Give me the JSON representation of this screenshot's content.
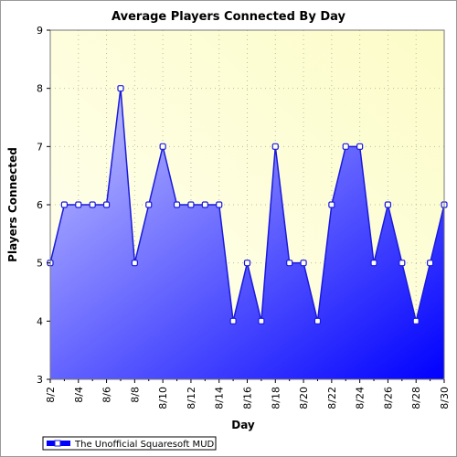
{
  "chart_data": {
    "type": "area",
    "title": "Average Players Connected By Day",
    "xlabel": "Day",
    "ylabel": "Players Connected",
    "ylim": [
      3,
      9
    ],
    "yticks": [
      3,
      4,
      5,
      6,
      7,
      8,
      9
    ],
    "x": [
      "8/2",
      "8/3",
      "8/4",
      "8/5",
      "8/6",
      "8/7",
      "8/8",
      "8/9",
      "8/10",
      "8/11",
      "8/12",
      "8/13",
      "8/14",
      "8/15",
      "8/16",
      "8/17",
      "8/18",
      "8/19",
      "8/20",
      "8/21",
      "8/22",
      "8/23",
      "8/24",
      "8/25",
      "8/26",
      "8/27",
      "8/28",
      "8/29",
      "8/30"
    ],
    "xtick_labels": [
      "8/2",
      "8/4",
      "8/6",
      "8/8",
      "8/10",
      "8/12",
      "8/14",
      "8/16",
      "8/18",
      "8/20",
      "8/22",
      "8/24",
      "8/26",
      "8/28",
      "8/30"
    ],
    "series": [
      {
        "name": "The Unofficial Squaresoft MUD",
        "values": [
          5,
          6,
          6,
          6,
          6,
          8,
          5,
          6,
          7,
          6,
          6,
          6,
          6,
          4,
          5,
          4,
          7,
          5,
          5,
          4,
          6,
          7,
          7,
          5,
          6,
          5,
          4,
          5,
          6
        ]
      }
    ],
    "grid": true,
    "legend_position": "bottom-left",
    "colors": {
      "line": "#1a1adc",
      "fill_light": "#c8c8ff",
      "fill_dark": "#0000ff",
      "marker_fill": "#ffffff",
      "plot_bg_light": "#fffff2",
      "plot_bg_dark": "#fcfcc8",
      "grid": "#bdbda0"
    }
  }
}
